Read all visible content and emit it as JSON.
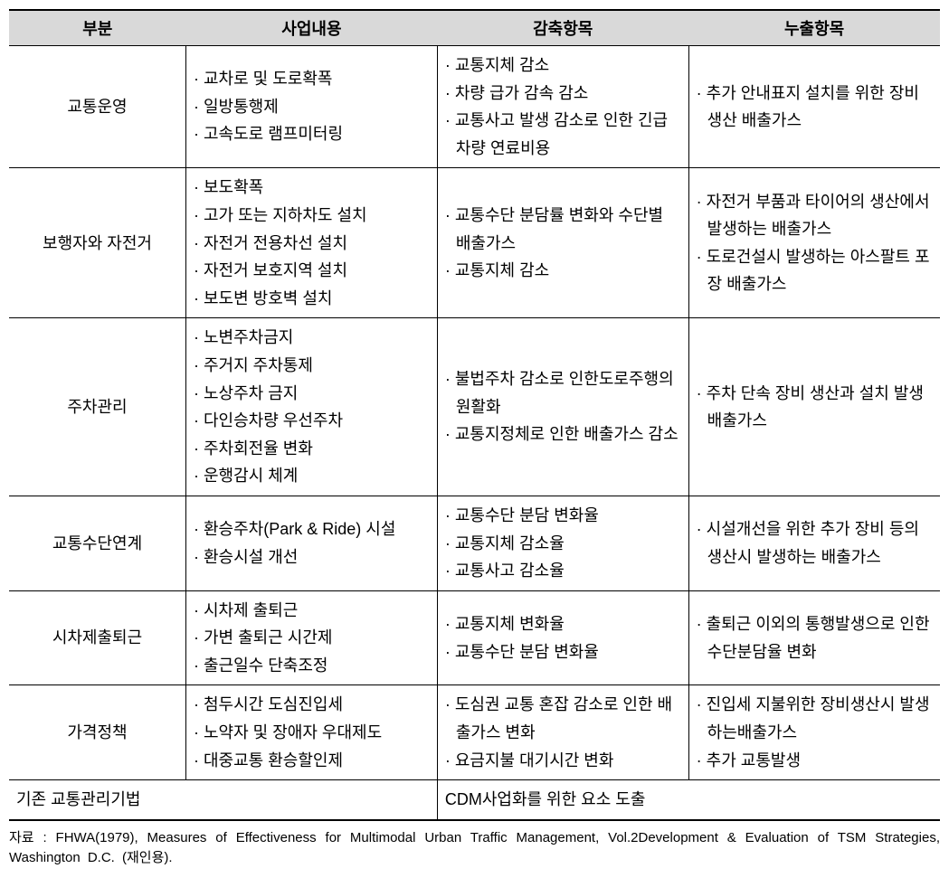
{
  "headers": {
    "category": "부분",
    "content": "사업내용",
    "reduction": "감축항목",
    "emission": "누출항목"
  },
  "rows": [
    {
      "category": "교통운영",
      "content": [
        "교차로 및 도로확폭",
        "일방통행제",
        "고속도로 램프미터링"
      ],
      "reduction": [
        "교통지체 감소",
        "차량 급가 감속 감소",
        "교통사고 발생 감소로 인한 긴급차량 연료비용"
      ],
      "emission": [
        " 추가 안내표지 설치를 위한 장비 생산 배출가스"
      ]
    },
    {
      "category": "보행자와 자전거",
      "content": [
        "보도확폭",
        "고가 또는 지하차도 설치",
        "자전거 전용차선 설치",
        "자전거 보호지역 설치",
        "보도변 방호벽 설치"
      ],
      "reduction": [
        "교통수단 분담률 변화와 수단별 배출가스",
        "교통지체 감소"
      ],
      "emission": [
        "자전거 부품과 타이어의 생산에서 발생하는 배출가스",
        "도로건설시 발생하는 아스팔트 포장 배출가스"
      ]
    },
    {
      "category": "주차관리",
      "content": [
        "노변주차금지",
        "주거지 주차통제",
        "노상주차 금지",
        "다인승차량 우선주차",
        "주차회전율 변화",
        "운행감시 체계"
      ],
      "reduction": [
        "불법주차 감소로 인한도로주행의 원활화",
        "교통지정체로 인한 배출가스 감소"
      ],
      "emission": [
        "주차 단속 장비 생산과 설치 발생 배출가스"
      ]
    },
    {
      "category": "교통수단연계",
      "content": [
        " 환승주차(Park & Ride) 시설",
        "환승시설 개선"
      ],
      "reduction": [
        "교통수단 분담 변화율",
        "교통지체 감소율",
        "교통사고 감소율"
      ],
      "emission": [
        "시설개선을 위한 추가 장비 등의 생산시 발생하는 배출가스"
      ]
    },
    {
      "category": "시차제출퇴근",
      "content": [
        "시차제 출퇴근",
        "가변 출퇴근 시간제",
        "출근일수 단축조정"
      ],
      "reduction": [
        "교통지체 변화율",
        "교통수단 분담 변화율"
      ],
      "emission": [
        "출퇴근 이외의 통행발생으로 인한 수단분담율 변화"
      ]
    },
    {
      "category": "가격정책",
      "content": [
        "첨두시간 도심진입세",
        " 노약자 및 장애자 우대제도",
        "대중교통 환승할인제"
      ],
      "reduction": [
        " 도심권 교통 혼잡 감소로 인한 배출가스 변화",
        "요금지불 대기시간 변화"
      ],
      "emission": [
        "진입세 지불위한 장비생산시 발생하는배출가스",
        "추가 교통발생"
      ]
    }
  ],
  "footer": {
    "left": "기존 교통관리기법",
    "right": "CDM사업화를 위한 요소 도출"
  },
  "source": "자료 : FHWA(1979), Measures of Effectiveness for Multimodal Urban Traffic Management, Vol.2Development & Evaluation of TSM Strategies, Washington D.C. (재인용).",
  "bullet": "·"
}
